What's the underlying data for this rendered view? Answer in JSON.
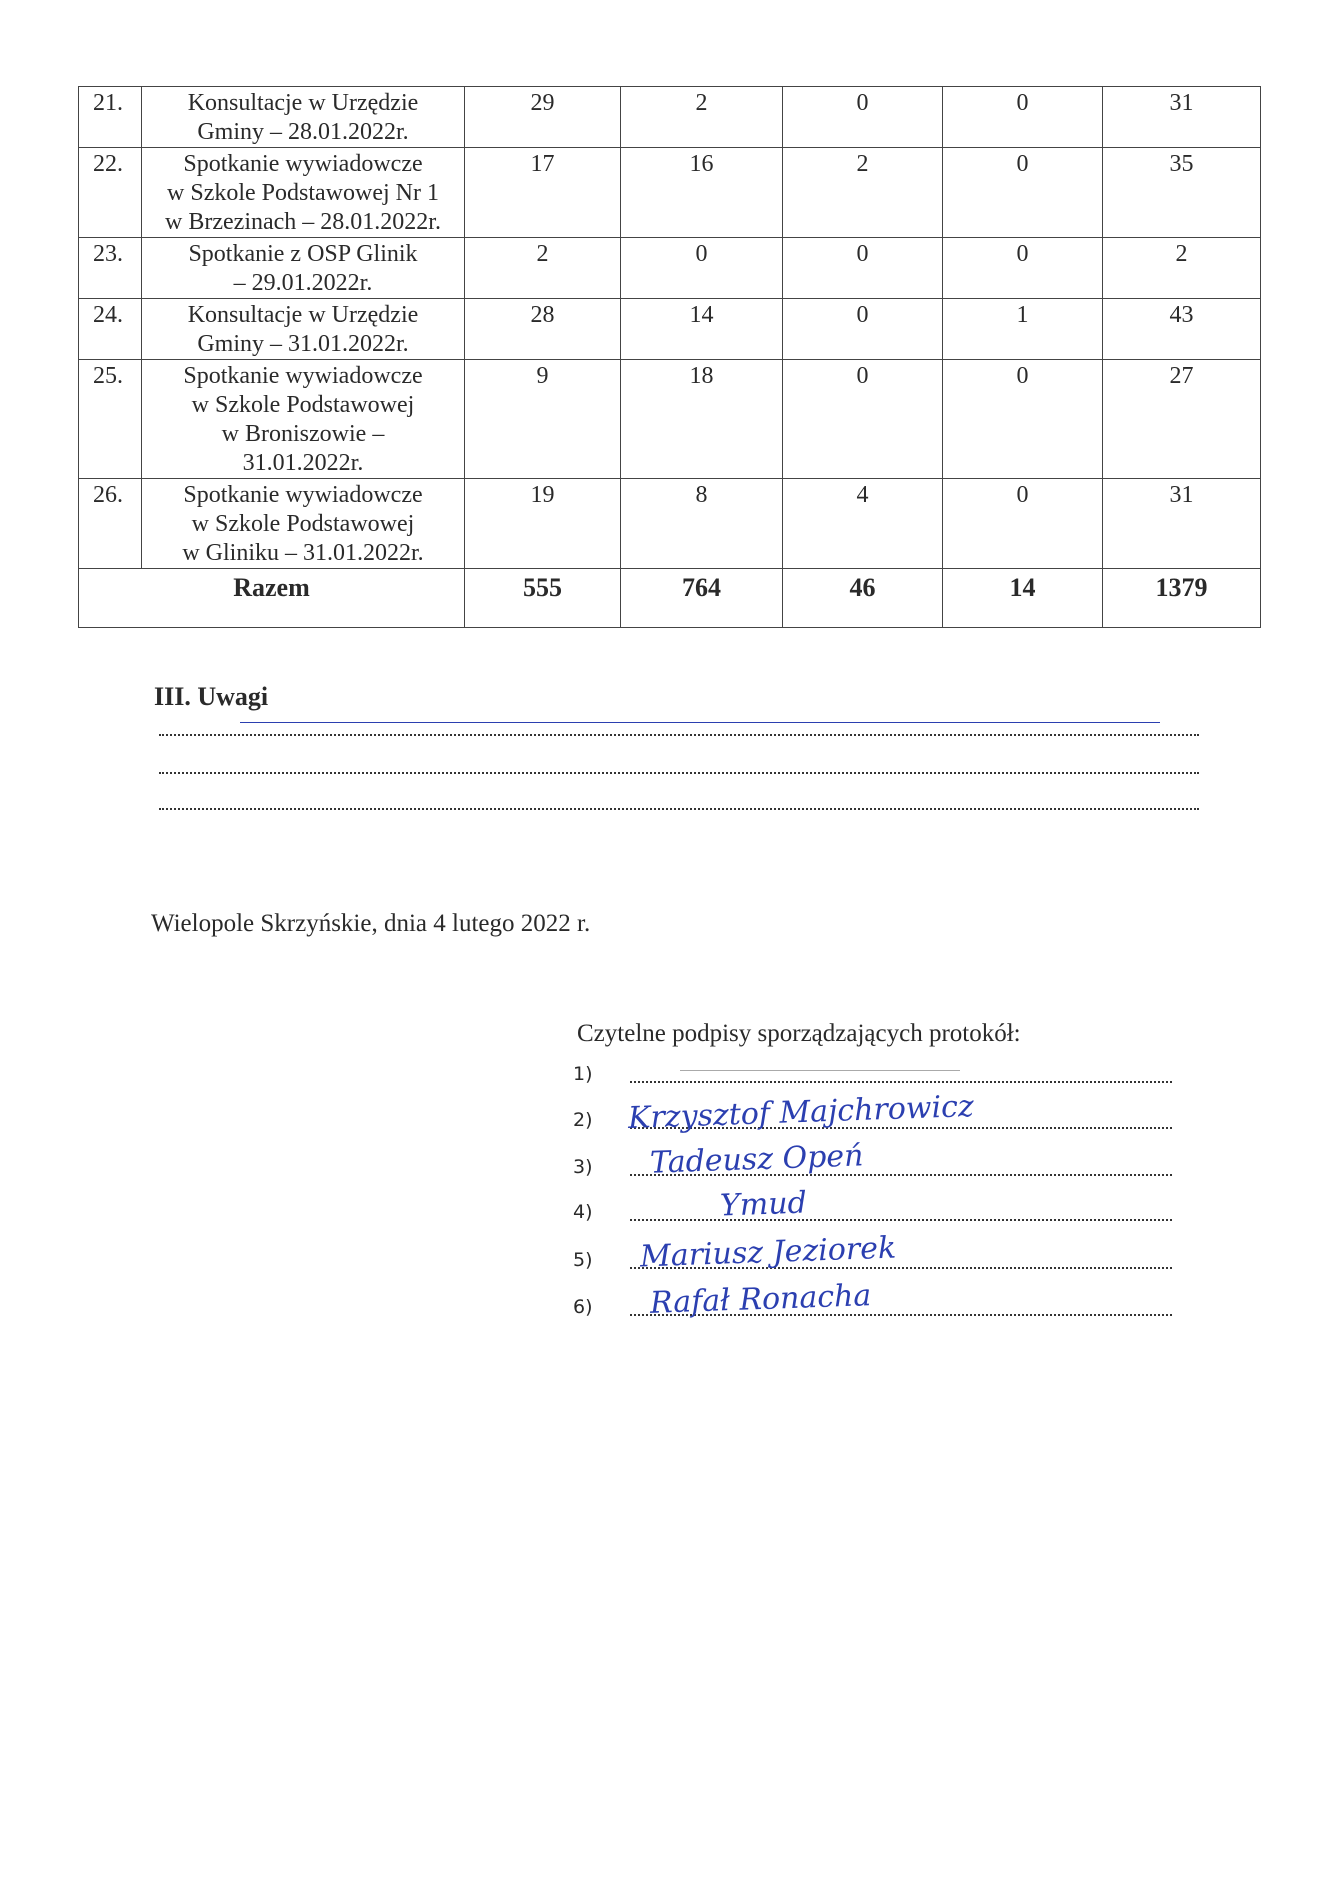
{
  "table": {
    "rows": [
      {
        "no": "21.",
        "desc": [
          "Konsultacje w Urzędzie",
          "Gminy – 28.01.2022r."
        ],
        "c1": "29",
        "c2": "2",
        "c3": "0",
        "c4": "0",
        "sum": "31"
      },
      {
        "no": "22.",
        "desc": [
          "Spotkanie wywiadowcze",
          "w Szkole Podstawowej Nr 1",
          "w Brzezinach – 28.01.2022r."
        ],
        "c1": "17",
        "c2": "16",
        "c3": "2",
        "c4": "0",
        "sum": "35"
      },
      {
        "no": "23.",
        "desc": [
          "Spotkanie z OSP Glinik",
          "– 29.01.2022r."
        ],
        "c1": "2",
        "c2": "0",
        "c3": "0",
        "c4": "0",
        "sum": "2"
      },
      {
        "no": "24.",
        "desc": [
          "Konsultacje w Urzędzie",
          "Gminy – 31.01.2022r."
        ],
        "c1": "28",
        "c2": "14",
        "c3": "0",
        "c4": "1",
        "sum": "43"
      },
      {
        "no": "25.",
        "desc": [
          "Spotkanie wywiadowcze",
          "w Szkole Podstawowej",
          "w Broniszowie –",
          "31.01.2022r."
        ],
        "c1": "9",
        "c2": "18",
        "c3": "0",
        "c4": "0",
        "sum": "27"
      },
      {
        "no": "26.",
        "desc": [
          "Spotkanie wywiadowcze",
          "w Szkole Podstawowej",
          "w Gliniku – 31.01.2022r."
        ],
        "c1": "19",
        "c2": "8",
        "c3": "4",
        "c4": "0",
        "sum": "31"
      }
    ],
    "total": {
      "label": "Razem",
      "c1": "555",
      "c2": "764",
      "c3": "46",
      "c4": "14",
      "sum": "1379"
    }
  },
  "remarks": {
    "heading": "III. Uwagi"
  },
  "place_date": "Wielopole Skrzyńskie, dnia 4 lutego 2022 r.",
  "signatures": {
    "heading": "Czytelne podpisy sporządzających protokół:",
    "items": [
      {
        "label": "1)",
        "signature": ""
      },
      {
        "label": "2)",
        "signature": "Krzysztof Majchrowicz"
      },
      {
        "label": "3)",
        "signature": "Tadeusz Opeń"
      },
      {
        "label": "4)",
        "signature": "Ymud"
      },
      {
        "label": "5)",
        "signature": "Mariusz Jeziorek"
      },
      {
        "label": "6)",
        "signature": "Rafał Ronacha"
      }
    ],
    "ink_color": "#2b3fb0"
  }
}
